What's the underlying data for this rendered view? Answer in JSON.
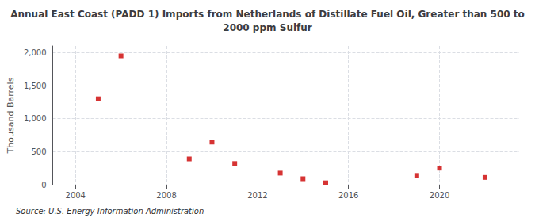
{
  "chart_data": {
    "type": "scatter",
    "title": "Annual East Coast (PADD 1) Imports from Netherlands of Distillate Fuel Oil, Greater than 500 to\n2000 ppm Sulfur",
    "ylabel": "Thousand Barrels",
    "source": "Source: U.S. Energy Information Administration",
    "x": [
      2005,
      2006,
      2009,
      2010,
      2011,
      2013,
      2014,
      2015,
      2019,
      2020,
      2022
    ],
    "values": [
      1300,
      1950,
      390,
      645,
      320,
      175,
      90,
      28,
      140,
      250,
      110
    ],
    "color": "#cc0000",
    "marker": "square",
    "xlim": [
      2003,
      2023.5
    ],
    "ylim": [
      0,
      2100
    ],
    "xticks": [
      2004,
      2008,
      2012,
      2016,
      2020
    ],
    "yticks": [
      0,
      500,
      {
        "value": 1000,
        "label": "1,000"
      },
      {
        "value": 1500,
        "label": "1,500"
      },
      {
        "value": 2000,
        "label": "2,000"
      }
    ],
    "grid": true
  }
}
